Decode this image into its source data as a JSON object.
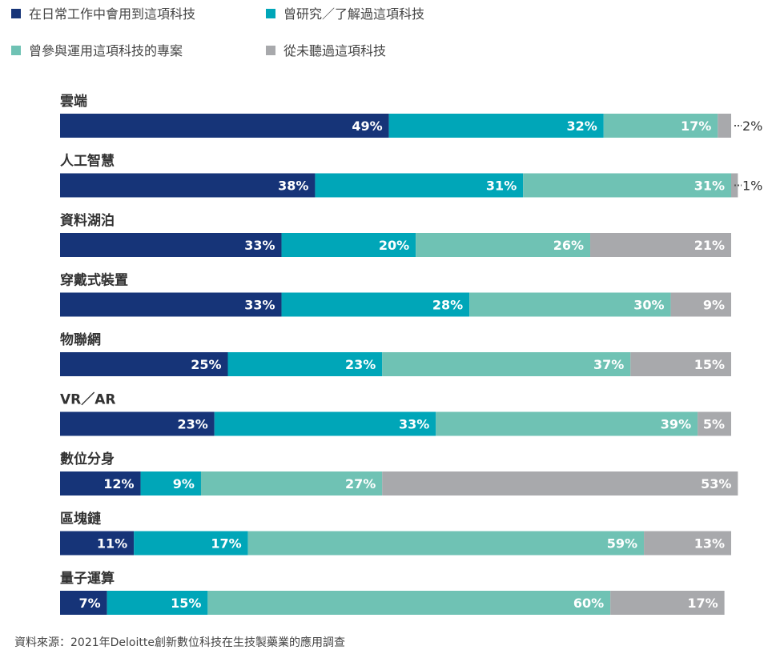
{
  "chart_data": {
    "type": "bar",
    "orientation": "horizontal",
    "stacked": true,
    "unit": "%",
    "title": "",
    "xlabel": "",
    "ylabel": "",
    "xlim": [
      0,
      100
    ],
    "grid": false,
    "legend_position": "top",
    "categories": [
      "雲端",
      "人工智慧",
      "資料湖泊",
      "穿戴式裝置",
      "物聯網",
      "VR／AR",
      "數位分身",
      "區塊鏈",
      "量子運算"
    ],
    "series": [
      {
        "name": "在日常工作中會用到這項科技",
        "color": "#163478",
        "values": [
          49,
          38,
          33,
          33,
          25,
          23,
          12,
          11,
          7
        ]
      },
      {
        "name": "曾研究／了解過這項科技",
        "color": "#00a6b8",
        "values": [
          32,
          31,
          20,
          28,
          23,
          33,
          9,
          17,
          15
        ]
      },
      {
        "name": "曾參與運用這項科技的專案",
        "color": "#6fc2b4",
        "values": [
          17,
          31,
          26,
          30,
          37,
          39,
          27,
          59,
          60
        ]
      },
      {
        "name": "從未聽過這項科技",
        "color": "#a8a9ac",
        "values": [
          2,
          1,
          21,
          9,
          15,
          5,
          53,
          13,
          17
        ]
      }
    ]
  },
  "source_note": "資料來源：2021年Deloitte創新數位科技在生技製藥業的應用調查"
}
